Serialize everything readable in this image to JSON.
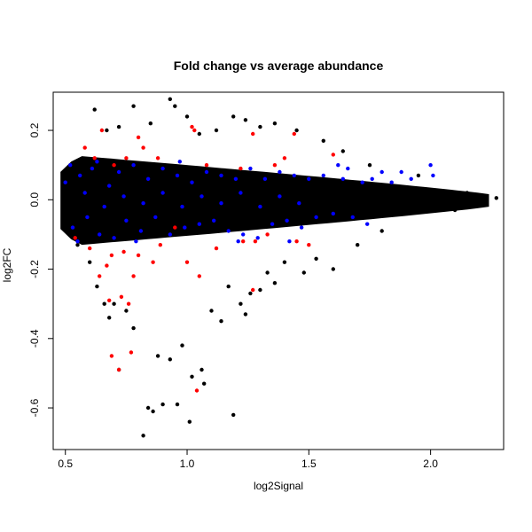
{
  "chart_data": {
    "type": "scatter",
    "title": "Fold change vs average abundance",
    "xlabel": "log2Signal",
    "ylabel": "log2FC",
    "xlim": [
      0.45,
      2.3
    ],
    "ylim": [
      -0.72,
      0.31
    ],
    "x_ticks": [
      0.5,
      1.0,
      1.5,
      2.0
    ],
    "x_tick_labels": [
      "0.5",
      "1.0",
      "1.5",
      "2.0"
    ],
    "y_ticks": [
      -0.6,
      -0.4,
      -0.2,
      0.0,
      0.2
    ],
    "y_tick_labels": [
      "-0.6",
      "-0.4",
      "-0.2",
      "0.0",
      "0.2"
    ],
    "grid": false,
    "legend": "none",
    "series": [
      {
        "color": "#000000",
        "points": [
          [
            0.62,
            0.26
          ],
          [
            0.78,
            0.27
          ],
          [
            0.93,
            0.29
          ],
          [
            0.95,
            0.27
          ],
          [
            1.0,
            0.24
          ],
          [
            1.19,
            0.24
          ],
          [
            0.55,
            -0.13
          ],
          [
            0.6,
            -0.18
          ],
          [
            0.63,
            -0.25
          ],
          [
            0.66,
            -0.3
          ],
          [
            0.68,
            -0.34
          ],
          [
            0.7,
            -0.3
          ],
          [
            0.72,
            -0.49
          ],
          [
            0.75,
            -0.32
          ],
          [
            0.78,
            -0.37
          ],
          [
            0.82,
            -0.68
          ],
          [
            0.84,
            -0.6
          ],
          [
            0.86,
            -0.61
          ],
          [
            0.88,
            -0.45
          ],
          [
            0.9,
            -0.59
          ],
          [
            0.93,
            -0.46
          ],
          [
            0.96,
            -0.59
          ],
          [
            0.98,
            -0.42
          ],
          [
            1.01,
            -0.64
          ],
          [
            1.02,
            -0.51
          ],
          [
            1.06,
            -0.49
          ],
          [
            1.07,
            -0.53
          ],
          [
            1.1,
            -0.32
          ],
          [
            1.14,
            -0.35
          ],
          [
            1.19,
            -0.62
          ],
          [
            1.22,
            -0.3
          ],
          [
            1.24,
            -0.33
          ],
          [
            1.3,
            -0.26
          ],
          [
            1.33,
            -0.21
          ],
          [
            1.36,
            -0.24
          ],
          [
            1.4,
            -0.18
          ],
          [
            1.48,
            -0.21
          ],
          [
            1.53,
            -0.17
          ],
          [
            1.6,
            -0.2
          ],
          [
            1.7,
            -0.13
          ],
          [
            1.8,
            -0.09
          ],
          [
            2.27,
            0.005
          ],
          [
            2.2,
            -0.01
          ],
          [
            2.15,
            0.02
          ],
          [
            2.1,
            -0.03
          ],
          [
            1.95,
            0.07
          ],
          [
            1.75,
            0.1
          ],
          [
            1.64,
            0.14
          ],
          [
            1.56,
            0.17
          ],
          [
            1.45,
            0.2
          ],
          [
            1.36,
            0.22
          ],
          [
            1.3,
            0.21
          ],
          [
            1.24,
            0.23
          ],
          [
            1.12,
            0.2
          ],
          [
            1.05,
            0.19
          ],
          [
            0.85,
            0.22
          ],
          [
            0.72,
            0.21
          ],
          [
            0.67,
            0.2
          ],
          [
            1.26,
            -0.27
          ],
          [
            1.17,
            -0.25
          ]
        ]
      },
      {
        "color": "#ff0000",
        "points": [
          [
            0.65,
            0.2
          ],
          [
            0.58,
            0.15
          ],
          [
            0.62,
            0.12
          ],
          [
            0.7,
            0.1
          ],
          [
            0.75,
            0.12
          ],
          [
            0.8,
            0.18
          ],
          [
            0.82,
            0.15
          ],
          [
            0.88,
            0.12
          ],
          [
            1.02,
            0.21
          ],
          [
            1.03,
            0.2
          ],
          [
            1.08,
            0.1
          ],
          [
            1.22,
            0.09
          ],
          [
            1.4,
            0.12
          ],
          [
            1.44,
            0.19
          ],
          [
            1.6,
            0.13
          ],
          [
            1.27,
            0.19
          ],
          [
            1.36,
            0.1
          ],
          [
            1.45,
            -0.12
          ],
          [
            1.5,
            -0.13
          ],
          [
            1.28,
            -0.12
          ],
          [
            1.23,
            -0.12
          ],
          [
            1.12,
            -0.14
          ],
          [
            1.05,
            -0.22
          ],
          [
            1.0,
            -0.18
          ],
          [
            0.95,
            -0.08
          ],
          [
            0.89,
            -0.13
          ],
          [
            0.86,
            -0.18
          ],
          [
            0.8,
            -0.16
          ],
          [
            0.78,
            -0.22
          ],
          [
            0.74,
            -0.15
          ],
          [
            0.73,
            -0.28
          ],
          [
            0.76,
            -0.3
          ],
          [
            0.69,
            -0.16
          ],
          [
            0.67,
            -0.19
          ],
          [
            0.64,
            -0.22
          ],
          [
            0.6,
            -0.14
          ],
          [
            0.54,
            -0.11
          ],
          [
            0.69,
            -0.45
          ],
          [
            0.77,
            -0.44
          ],
          [
            0.72,
            -0.49
          ],
          [
            1.04,
            -0.55
          ],
          [
            1.27,
            -0.26
          ],
          [
            0.68,
            -0.29
          ],
          [
            1.33,
            -0.1
          ]
        ]
      },
      {
        "color": "#0000ff",
        "points": [
          [
            0.5,
            0.05
          ],
          [
            0.53,
            -0.08
          ],
          [
            0.56,
            0.07
          ],
          [
            0.59,
            -0.05
          ],
          [
            0.61,
            0.09
          ],
          [
            0.64,
            -0.1
          ],
          [
            0.68,
            0.04
          ],
          [
            0.7,
            -0.11
          ],
          [
            0.72,
            0.08
          ],
          [
            0.75,
            -0.06
          ],
          [
            0.78,
            0.1
          ],
          [
            0.81,
            -0.09
          ],
          [
            0.84,
            0.06
          ],
          [
            0.87,
            -0.05
          ],
          [
            0.9,
            0.09
          ],
          [
            0.93,
            -0.1
          ],
          [
            0.96,
            0.07
          ],
          [
            0.99,
            -0.08
          ],
          [
            1.02,
            0.05
          ],
          [
            1.05,
            -0.07
          ],
          [
            1.08,
            0.08
          ],
          [
            1.11,
            -0.06
          ],
          [
            1.14,
            0.07
          ],
          [
            1.17,
            -0.09
          ],
          [
            1.2,
            0.06
          ],
          [
            1.23,
            -0.1
          ],
          [
            1.26,
            0.09
          ],
          [
            1.29,
            -0.11
          ],
          [
            1.32,
            0.06
          ],
          [
            1.35,
            -0.07
          ],
          [
            1.38,
            0.08
          ],
          [
            1.41,
            -0.06
          ],
          [
            1.44,
            0.07
          ],
          [
            1.47,
            -0.08
          ],
          [
            1.5,
            0.06
          ],
          [
            1.53,
            -0.05
          ],
          [
            1.56,
            0.07
          ],
          [
            1.6,
            -0.04
          ],
          [
            1.64,
            0.06
          ],
          [
            1.68,
            -0.05
          ],
          [
            1.72,
            0.05
          ],
          [
            1.76,
            0.06
          ],
          [
            1.8,
            0.08
          ],
          [
            1.84,
            0.05
          ],
          [
            1.88,
            0.08
          ],
          [
            1.92,
            0.06
          ],
          [
            2.0,
            0.1
          ],
          [
            2.01,
            0.07
          ],
          [
            0.58,
            0.02
          ],
          [
            0.66,
            -0.02
          ],
          [
            0.74,
            0.01
          ],
          [
            0.82,
            -0.01
          ],
          [
            0.9,
            0.02
          ],
          [
            0.98,
            -0.02
          ],
          [
            1.06,
            0.01
          ],
          [
            1.14,
            -0.01
          ],
          [
            1.22,
            0.02
          ],
          [
            1.3,
            -0.02
          ],
          [
            1.38,
            0.01
          ],
          [
            1.46,
            -0.01
          ],
          [
            0.52,
            0.1
          ],
          [
            0.55,
            -0.12
          ],
          [
            0.63,
            0.11
          ],
          [
            0.79,
            -0.12
          ],
          [
            0.97,
            0.11
          ],
          [
            1.21,
            -0.12
          ],
          [
            1.42,
            -0.12
          ],
          [
            1.62,
            0.1
          ],
          [
            1.66,
            0.09
          ],
          [
            1.74,
            -0.07
          ]
        ]
      }
    ]
  }
}
